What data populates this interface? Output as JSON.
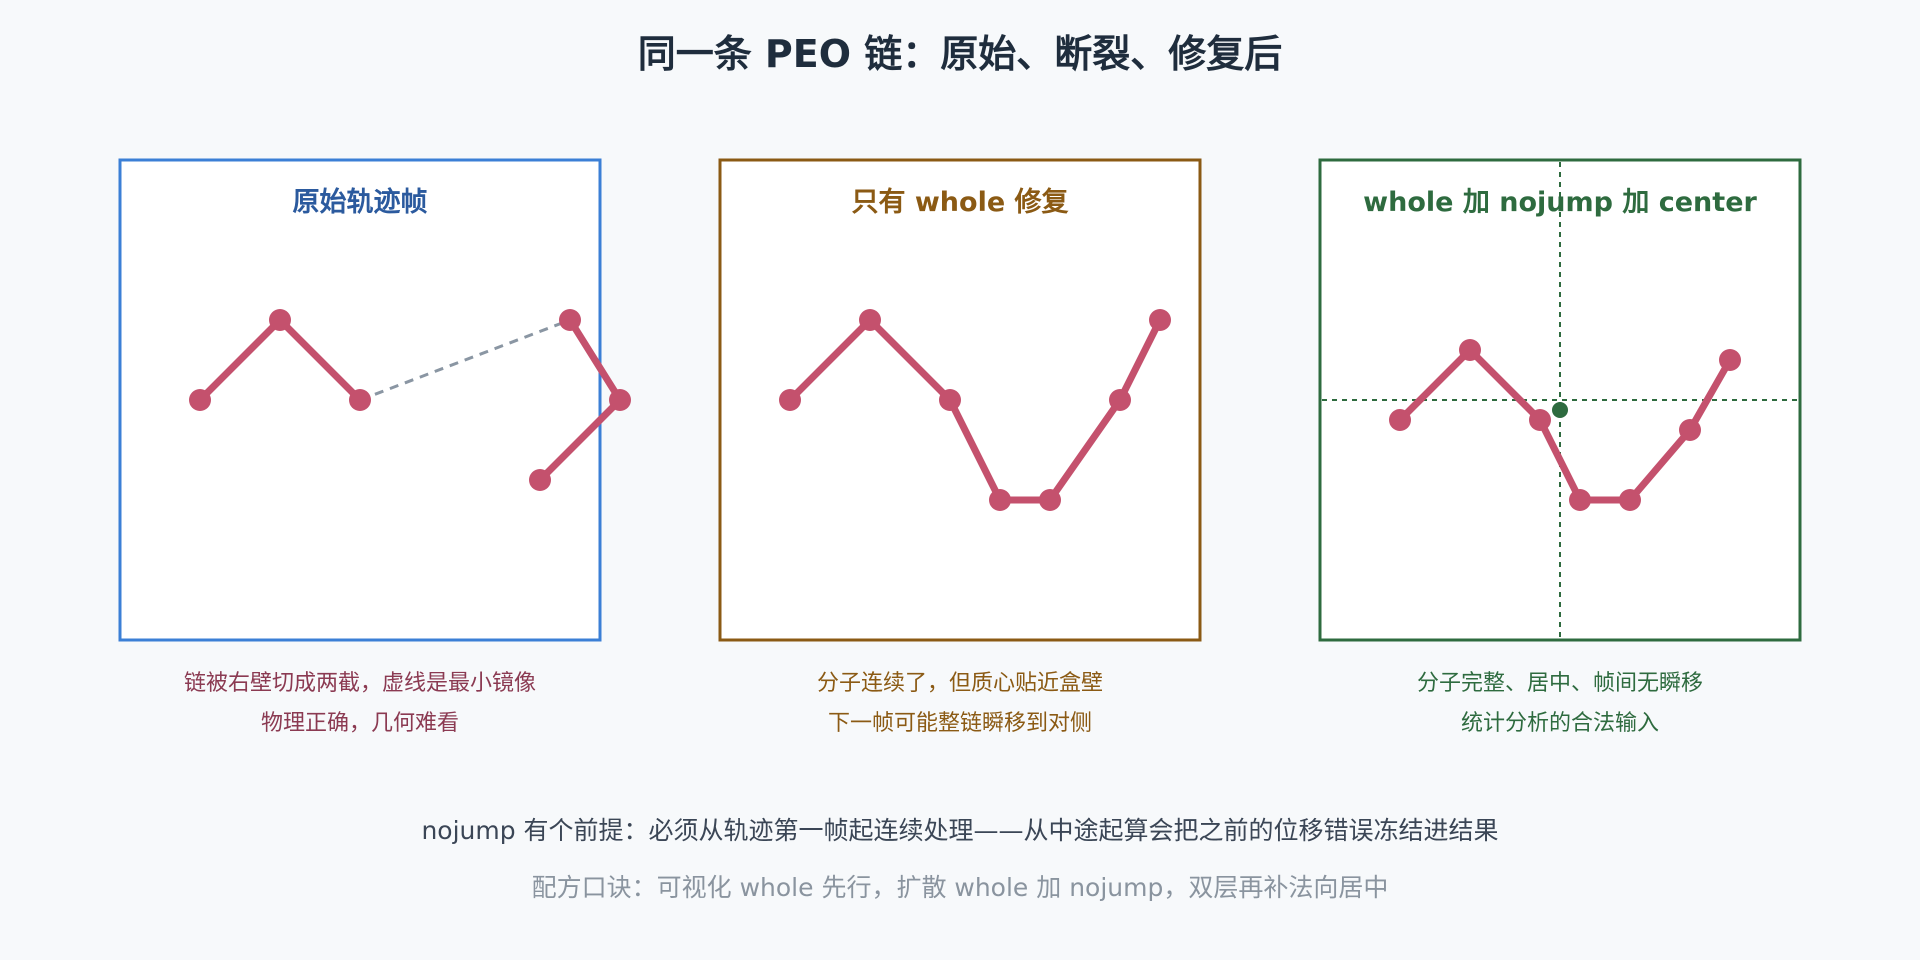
{
  "title": "同一条 PEO 链：原始、断裂、修复后",
  "colors": {
    "background": "#f7f9fb",
    "chain": "#c4516d",
    "image_link": "#8a96a3"
  },
  "panels": [
    {
      "label": "原始轨迹帧",
      "color": "#3b7fd6",
      "caption_lines": [
        "链被右壁切成两截，虚线是最小镜像",
        "物理正确，几何难看"
      ],
      "caption_color": "#8b3a52"
    },
    {
      "label": "只有 whole 修复",
      "color": "#8b5a14",
      "caption_lines": [
        "分子连续了，但质心贴近盒壁",
        "下一帧可能整链瞬移到对侧"
      ],
      "caption_color": "#8b5a14"
    },
    {
      "label": "whole 加 nojump 加 center",
      "color": "#2e6b3f",
      "caption_lines": [
        "分子完整、居中、帧间无瞬移",
        "统计分析的合法输入"
      ],
      "caption_color": "#2e6b3f"
    }
  ],
  "footer": {
    "line1": "nojump 有个前提：必须从轨迹第一帧起连续处理——从中途起算会把之前的位移错误冻结进结果",
    "line2": "配方口诀：可视化 whole 先行，扩散 whole 加 nojump，双层再补法向居中"
  }
}
